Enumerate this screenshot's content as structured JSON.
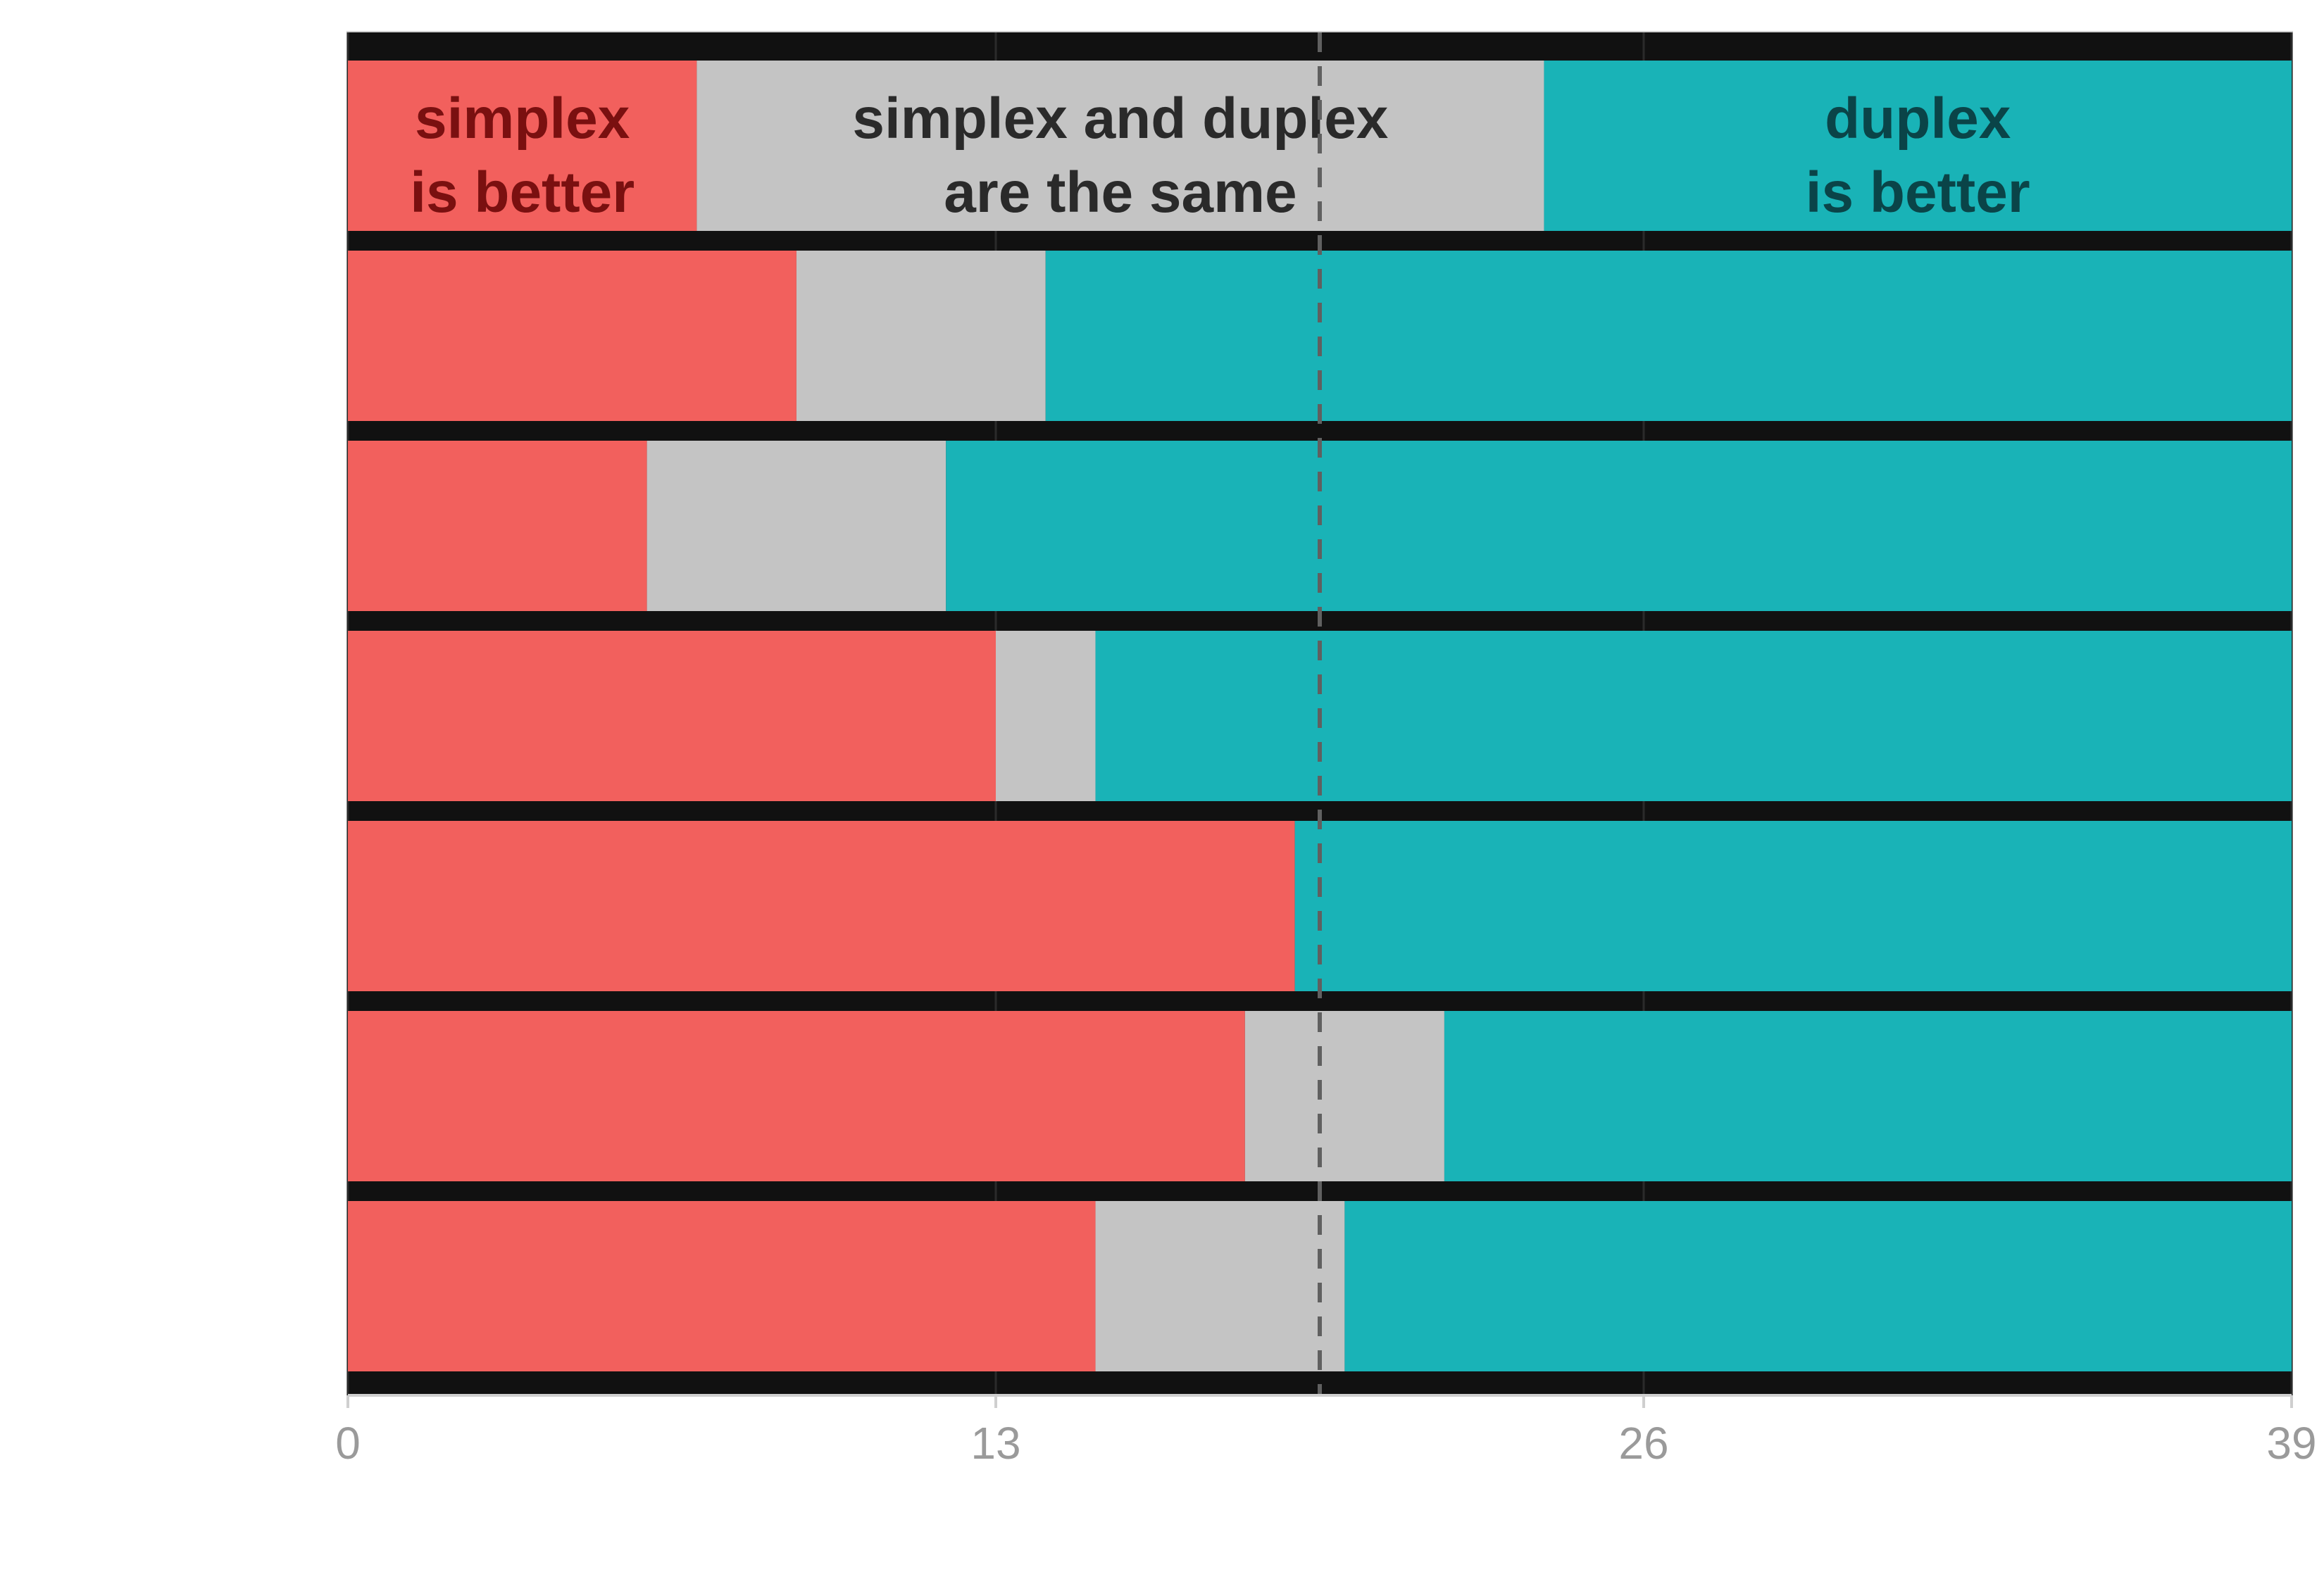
{
  "chart_data": {
    "type": "bar",
    "orientation": "horizontal",
    "stacked": true,
    "title": "",
    "xlabel": "",
    "ylabel": "",
    "xlim": [
      0,
      39
    ],
    "x_ticks": [
      0,
      13,
      26,
      39
    ],
    "grid": true,
    "reference_line": {
      "x": 19.5,
      "style": "dashed"
    },
    "header_row": {
      "values": [
        7,
        17,
        15
      ],
      "labels": [
        {
          "line1": "simplex",
          "line2": "is better"
        },
        {
          "line1": "simplex and duplex",
          "line2": "are the same"
        },
        {
          "line1": "duplex",
          "line2": "is better"
        }
      ],
      "label_colors": [
        "#7a1010",
        "#2a2a2a",
        "#0a4448"
      ]
    },
    "series": [
      {
        "values": [
          9,
          6,
          13,
          19,
          18,
          15
        ]
      },
      {
        "values": [
          5,
          6,
          2,
          0,
          4,
          5
        ]
      },
      {
        "values": [
          25,
          27,
          24,
          20,
          17,
          19
        ]
      }
    ],
    "colors": [
      "#f2605d",
      "#c4c4c4",
      "#19b3b7"
    ],
    "separator_color": "#111111",
    "reference_line_color": "#606060"
  }
}
